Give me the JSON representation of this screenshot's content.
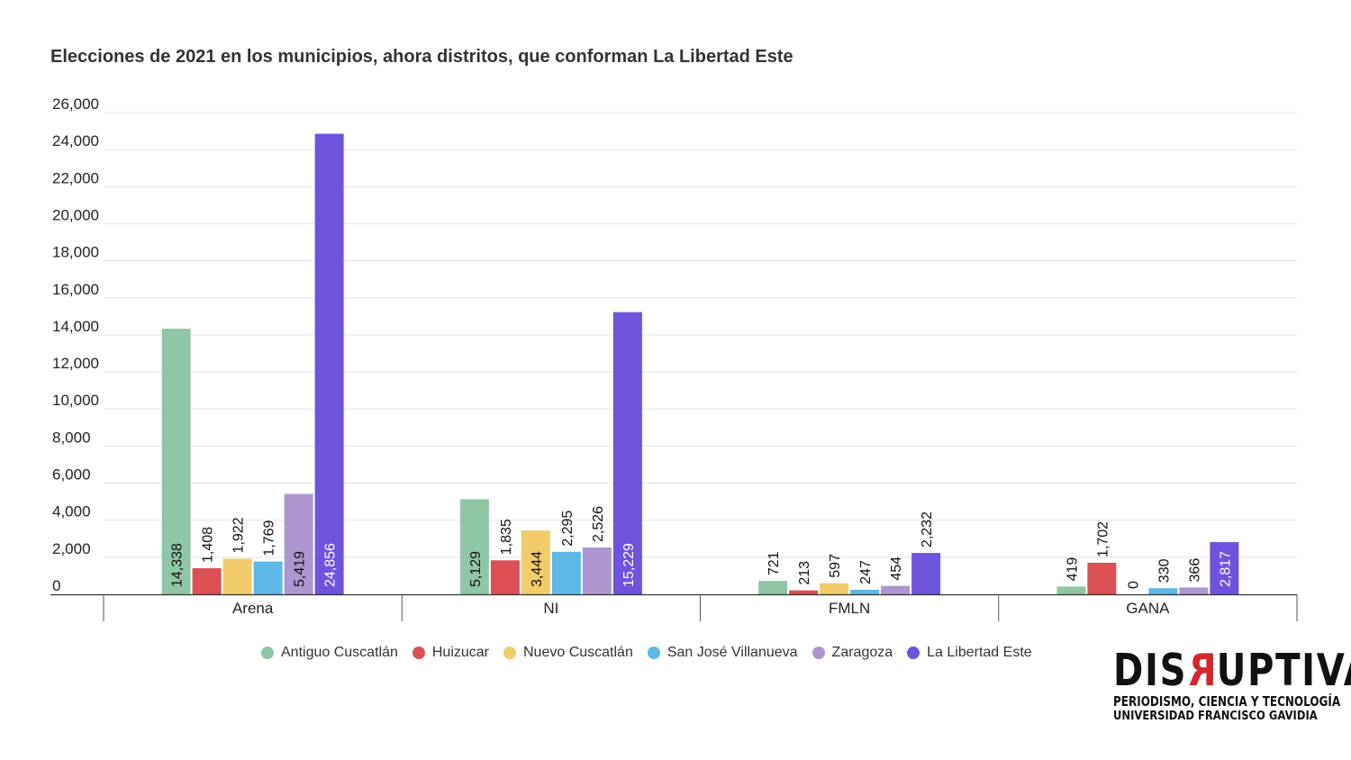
{
  "chart_data": {
    "type": "bar",
    "title": "Elecciones de 2021 en los municipios, ahora distritos, que conforman La Libertad Este",
    "categories": [
      "Arena",
      "NI",
      "FMLN",
      "GANA"
    ],
    "ylim": [
      0,
      26000
    ],
    "yticks": [
      "0",
      "2,000",
      "4,000",
      "6,000",
      "8,000",
      "10,000",
      "12,000",
      "14,000",
      "16,000",
      "18,000",
      "20,000",
      "22,000",
      "24,000",
      "26,000"
    ],
    "grid": true,
    "legend_position": "bottom",
    "series": [
      {
        "name": "Antiguo Cuscatlán",
        "color": "#8fc6a6",
        "values": [
          14338,
          5129,
          721,
          419
        ],
        "labels": [
          "14,338",
          "5,129",
          "721",
          "419"
        ]
      },
      {
        "name": "Huizucar",
        "color": "#dc4f52",
        "values": [
          1408,
          1835,
          213,
          1702
        ],
        "labels": [
          "1,408",
          "1,835",
          "213",
          "1,702"
        ]
      },
      {
        "name": "Nuevo Cuscatlán",
        "color": "#f2cc6a",
        "values": [
          1922,
          3444,
          597,
          0
        ],
        "labels": [
          "1,922",
          "3,444",
          "597",
          "0"
        ]
      },
      {
        "name": "San José Villanueva",
        "color": "#5db8e6",
        "values": [
          1769,
          2295,
          247,
          330
        ],
        "labels": [
          "1,769",
          "2,295",
          "247",
          "330"
        ]
      },
      {
        "name": "Zaragoza",
        "color": "#ad95cf",
        "values": [
          5419,
          2526,
          454,
          366
        ],
        "labels": [
          "5,419",
          "2,526",
          "454",
          "366"
        ]
      },
      {
        "name": "La Libertad Este",
        "color": "#6e53dc",
        "values": [
          24856,
          15229,
          2232,
          2817
        ],
        "labels": [
          "24,856",
          "15,229",
          "2,232",
          "2,817"
        ]
      }
    ]
  },
  "logo": {
    "word_pre": "DIS",
    "word_r": "R",
    "word_post": "UPTIVA",
    "line1": "PERIODISMO, CIENCIA Y TECNOLOGÍA",
    "line2": "UNIVERSIDAD FRANCISCO GAVIDIA",
    "accent_color": "#d3272f"
  }
}
